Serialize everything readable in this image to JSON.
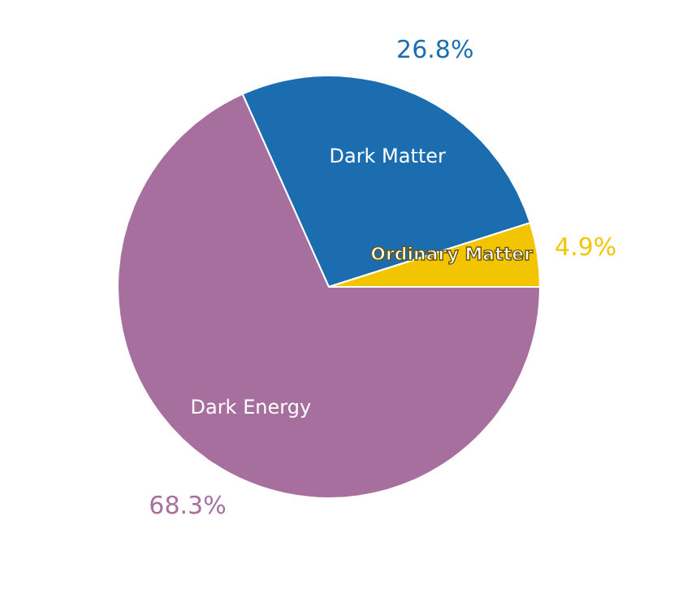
{
  "chart_data": {
    "type": "pie",
    "categories": [
      "Dark Energy",
      "Dark Matter",
      "Ordinary Matter"
    ],
    "values": [
      68.3,
      26.8,
      4.9
    ],
    "colors": [
      "#a66f9e",
      "#1b6db0",
      "#f2c500"
    ],
    "value_labels": [
      "68.3%",
      "26.8%",
      "4.9%"
    ],
    "legend": false
  }
}
